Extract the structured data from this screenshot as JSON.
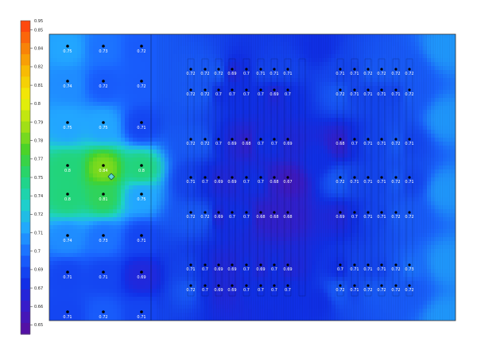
{
  "chart_data": {
    "type": "heatmap",
    "title": "",
    "xlabel": "",
    "ylabel": "",
    "colorbar": {
      "min": 0.65,
      "max": 0.95,
      "ticks": [
        "0.65",
        "0.66",
        "0.67",
        "0.69",
        "0.7",
        "0.71",
        "0.72",
        "0.74",
        "0.75",
        "0.77",
        "0.78",
        "0.79",
        "0.8",
        "0.81",
        "0.82",
        "0.84",
        "0.85"
      ],
      "top_label": "0.95"
    },
    "row_y": [
      0,
      1,
      2,
      3,
      4,
      5,
      6,
      7
    ],
    "left_columns": [
      0,
      1,
      2
    ],
    "left_values": [
      [
        "0.75",
        "0.73",
        "0.72"
      ],
      [
        "0.74",
        "0.72",
        "0.72"
      ],
      [
        "0.75",
        "0.75",
        "0.71"
      ],
      [
        "0.8",
        "0.84",
        "0.8"
      ],
      [
        "0.8",
        "0.81",
        "0.75"
      ],
      [
        "0.74",
        "0.73",
        "0.71"
      ],
      [
        "0.71",
        "0.71",
        "0.69"
      ],
      [
        "0.71",
        "0.72",
        "0.71"
      ]
    ],
    "right_rows": [
      [
        "0.72",
        "0.72",
        "0.72",
        "0.69",
        "0.7",
        "0.71",
        "0.71",
        "0.71",
        "",
        "0.71",
        "0.71",
        "0.72",
        "0.72",
        "0.72",
        "0.72"
      ],
      [
        "0.72",
        "0.72",
        "0.7",
        "0.7",
        "0.7",
        "0.7",
        "0.69",
        "0.7",
        "",
        "0.72",
        "0.71",
        "0.71",
        "0.71",
        "0.71",
        "0.72"
      ],
      [
        "0.72",
        "0.72",
        "0.7",
        "0.69",
        "0.68",
        "0.7",
        "0.7",
        "0.69",
        "",
        "0.68",
        "0.7",
        "0.71",
        "0.71",
        "0.72",
        "0.71"
      ],
      [
        "0.71",
        "0.7",
        "0.69",
        "0.69",
        "0.7",
        "0.7",
        "0.68",
        "0.67",
        "",
        "0.72",
        "0.71",
        "0.71",
        "0.71",
        "0.72",
        "0.71"
      ],
      [
        "0.72",
        "0.72",
        "0.69",
        "0.7",
        "0.7",
        "0.68",
        "0.68",
        "0.68",
        "",
        "0.69",
        "0.7",
        "0.71",
        "0.71",
        "0.72",
        "0.72"
      ],
      [
        "0.71",
        "0.7",
        "0.69",
        "0.69",
        "0.7",
        "0.69",
        "0.7",
        "0.69",
        "",
        "0.7",
        "0.71",
        "0.71",
        "0.71",
        "0.72",
        "0.73"
      ],
      [
        "0.72",
        "0.7",
        "0.69",
        "0.69",
        "0.7",
        "0.7",
        "0.7",
        "0.7",
        "",
        "0.72",
        "0.71",
        "0.72",
        "0.72",
        "0.72",
        "0.72"
      ]
    ],
    "marker": {
      "col": 1.2,
      "row": 3.4,
      "value": 0.84
    },
    "colorscale": [
      "#5a0e9c",
      "#3a1cc8",
      "#1030e8",
      "#1a66ff",
      "#22a6ff",
      "#1ed2c8",
      "#22d47a",
      "#44d22a",
      "#a8e014",
      "#f0f008",
      "#f8c004",
      "#f87e08",
      "#ff3a10"
    ]
  }
}
